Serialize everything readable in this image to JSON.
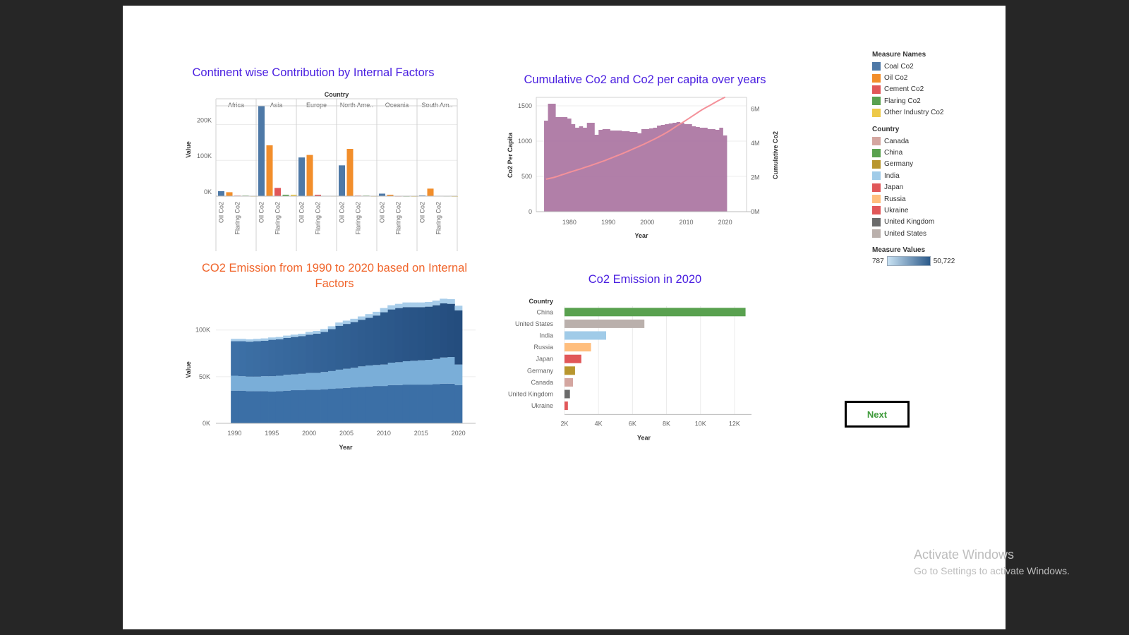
{
  "colors": {
    "coal": "#4e79a7",
    "oil": "#f28e2b",
    "cement": "#e15759",
    "flaring": "#59a14f",
    "other": "#edc948",
    "title_blue": "#4a1fe0",
    "title_orange": "#f0642a",
    "area_purple": "#ad78a3",
    "line_pink": "#f4919a"
  },
  "charts": {
    "continent": {
      "title": "Continent wise Contribution by Internal Factors",
      "header_label": "Country",
      "continents": [
        "Africa",
        "Asia",
        "Europe",
        "North Ame..",
        "Oceania",
        "South Am.."
      ],
      "x_tick_labels": [
        "Oil Co2",
        "Flaring Co2"
      ],
      "ylabel": "Value",
      "y_ticks": [
        "0K",
        "100K",
        "200K"
      ]
    },
    "cumulative": {
      "title": "Cumulative Co2 and Co2 per capita over years",
      "ylabel_left": "Co2 Per Capita",
      "ylabel_right": "Cumulative Co2",
      "xlabel": "Year",
      "y_ticks_left": [
        "0",
        "500",
        "1000",
        "1500"
      ],
      "y_ticks_right": [
        "0M",
        "2M",
        "4M",
        "6M"
      ],
      "x_ticks": [
        "1980",
        "1990",
        "2000",
        "2010",
        "2020"
      ]
    },
    "emission_area": {
      "title": "CO2 Emission from 1990 to 2020 based on Internal Factors",
      "ylabel": "Value",
      "xlabel": "Year",
      "y_ticks": [
        "0K",
        "50K",
        "100K"
      ],
      "x_ticks": [
        "1990",
        "1995",
        "2000",
        "2005",
        "2010",
        "2015",
        "2020"
      ]
    },
    "emission_2020": {
      "title": "Co2 Emission in 2020",
      "header_label": "Country",
      "xlabel": "Year",
      "x_ticks": [
        "2K",
        "4K",
        "6K",
        "8K",
        "10K",
        "12K"
      ]
    }
  },
  "legend": {
    "measure_names_title": "Measure Names",
    "measure_names": [
      {
        "label": "Coal Co2",
        "color": "#4e79a7"
      },
      {
        "label": "Oil Co2",
        "color": "#f28e2b"
      },
      {
        "label": "Cement Co2",
        "color": "#e15759"
      },
      {
        "label": "Flaring Co2",
        "color": "#59a14f"
      },
      {
        "label": "Other Industry Co2",
        "color": "#edc948"
      }
    ],
    "country_title": "Country",
    "countries": [
      {
        "label": "Canada",
        "color": "#d4a6a0"
      },
      {
        "label": "China",
        "color": "#59a14f"
      },
      {
        "label": "Germany",
        "color": "#b8962e"
      },
      {
        "label": "India",
        "color": "#a0cbe8"
      },
      {
        "label": "Japan",
        "color": "#e15759"
      },
      {
        "label": "Russia",
        "color": "#ffbe7d"
      },
      {
        "label": "Ukraine",
        "color": "#e15759"
      },
      {
        "label": "United Kingdom",
        "color": "#6b6b6b"
      },
      {
        "label": "United States",
        "color": "#bab0ac"
      }
    ],
    "measure_values_title": "Measure Values",
    "measure_values_min": "787",
    "measure_values_max": "50,722"
  },
  "next_button_label": "Next",
  "watermark": {
    "line1": "Activate Windows",
    "line2": "Go to Settings to activate Windows."
  },
  "chart_data": [
    {
      "type": "bar",
      "title": "Continent wise Contribution by Internal Factors",
      "ylabel": "Value",
      "ylim": [
        0,
        260000
      ],
      "categories": [
        "Africa",
        "Asia",
        "Europe",
        "North Ame..",
        "Oceania",
        "South Am.."
      ],
      "series": [
        {
          "name": "Coal Co2",
          "values": [
            14000,
            252000,
            108000,
            86000,
            7000,
            2000
          ]
        },
        {
          "name": "Oil Co2",
          "values": [
            11000,
            142000,
            115000,
            132000,
            4000,
            21000
          ]
        },
        {
          "name": "Cement Co2",
          "values": [
            1500,
            23000,
            4000,
            1500,
            400,
            1000
          ]
        },
        {
          "name": "Flaring Co2",
          "values": [
            1500,
            4000,
            800,
            1500,
            300,
            500
          ]
        },
        {
          "name": "Other Industry Co2",
          "values": [
            300,
            4000,
            500,
            300,
            100,
            100
          ]
        }
      ]
    },
    {
      "type": "area",
      "title": "Cumulative Co2 and Co2 per capita over years",
      "x": [
        1974,
        1975,
        1976,
        1977,
        1978,
        1979,
        1980,
        1981,
        1982,
        1983,
        1984,
        1985,
        1986,
        1987,
        1988,
        1989,
        1990,
        1991,
        1992,
        1993,
        1994,
        1995,
        1996,
        1997,
        1998,
        1999,
        2000,
        2001,
        2002,
        2003,
        2004,
        2005,
        2006,
        2007,
        2008,
        2009,
        2010,
        2011,
        2012,
        2013,
        2014,
        2015,
        2016,
        2017,
        2018,
        2019,
        2020
      ],
      "series": [
        {
          "name": "Co2 Per Capita",
          "values": [
            1290,
            1530,
            1530,
            1340,
            1340,
            1340,
            1320,
            1240,
            1190,
            1210,
            1190,
            1260,
            1260,
            1090,
            1160,
            1170,
            1170,
            1150,
            1150,
            1150,
            1140,
            1140,
            1130,
            1130,
            1110,
            1170,
            1170,
            1180,
            1190,
            1220,
            1230,
            1240,
            1250,
            1260,
            1270,
            1260,
            1240,
            1240,
            1210,
            1200,
            1190,
            1190,
            1170,
            1170,
            1160,
            1190,
            1080
          ]
        },
        {
          "name": "Cumulative Co2",
          "values": [
            1.9,
            1.95,
            2.0,
            2.07,
            2.15,
            2.22,
            2.3,
            2.37,
            2.44,
            2.51,
            2.59,
            2.66,
            2.74,
            2.82,
            2.9,
            2.98,
            3.07,
            3.16,
            3.25,
            3.34,
            3.43,
            3.53,
            3.63,
            3.73,
            3.83,
            3.93,
            4.04,
            4.15,
            4.26,
            4.38,
            4.5,
            4.63,
            4.77,
            4.92,
            5.07,
            5.2,
            5.35,
            5.5,
            5.65,
            5.8,
            5.95,
            6.08,
            6.2,
            6.33,
            6.46,
            6.58,
            6.7
          ]
        }
      ],
      "ylim_left": [
        0,
        1600
      ],
      "ylim_right_millions": [
        0,
        6.6
      ],
      "xlabel": "Year"
    },
    {
      "type": "area",
      "title": "CO2 Emission from 1990 to 2020 based on Internal Factors",
      "x": [
        1990,
        1991,
        1992,
        1993,
        1994,
        1995,
        1996,
        1997,
        1998,
        1999,
        2000,
        2001,
        2002,
        2003,
        2004,
        2005,
        2006,
        2007,
        2008,
        2009,
        2010,
        2011,
        2012,
        2013,
        2014,
        2015,
        2016,
        2017,
        2018,
        2019,
        2020
      ],
      "series": [
        {
          "name": "Coal Co2",
          "values": [
            35000,
            35000,
            34500,
            34500,
            34500,
            34000,
            34500,
            35000,
            35500,
            35500,
            36000,
            36000,
            36500,
            37000,
            37500,
            38000,
            38500,
            39000,
            39500,
            40000,
            40000,
            41000,
            41000,
            41500,
            41500,
            41500,
            41500,
            42000,
            42500,
            42500,
            41000
          ]
        },
        {
          "name": "Oil Co2",
          "values": [
            16000,
            15500,
            15500,
            15500,
            16000,
            16500,
            16500,
            17000,
            17000,
            17500,
            18000,
            18000,
            18500,
            19000,
            20000,
            20500,
            21000,
            22000,
            22500,
            22500,
            23000,
            24000,
            24500,
            25000,
            25500,
            26000,
            26500,
            27000,
            28000,
            28500,
            22000
          ]
        },
        {
          "name": "Cement Co2",
          "values": [
            37000,
            37500,
            37500,
            38000,
            38000,
            39000,
            39000,
            39500,
            40000,
            40500,
            41000,
            42000,
            43000,
            45000,
            47000,
            48000,
            49000,
            50000,
            51000,
            53000,
            56000,
            57000,
            58000,
            58000,
            57500,
            57000,
            57000,
            57500,
            58000,
            57000,
            58000
          ]
        },
        {
          "name": "Flaring Co2",
          "values": [
            2500,
            2500,
            2500,
            2500,
            2500,
            2500,
            2500,
            2500,
            2500,
            2500,
            3000,
            3000,
            3000,
            3000,
            3500,
            3500,
            3500,
            3500,
            4000,
            4000,
            4500,
            4500,
            4500,
            5000,
            5000,
            5000,
            5000,
            5000,
            5000,
            5000,
            5000
          ]
        }
      ],
      "ylabel": "Value",
      "xlabel": "Year",
      "ylim": [
        0,
        130000
      ]
    },
    {
      "type": "bar",
      "title": "Co2 Emission in 2020",
      "categories": [
        "China",
        "United States",
        "India",
        "Russia",
        "Japan",
        "Germany",
        "Canada",
        "United Kingdom",
        "Ukraine"
      ],
      "values": [
        12650,
        6700,
        4450,
        3560,
        2990,
        2620,
        2500,
        2320,
        2200
      ],
      "xlabel": "Year",
      "xlim": [
        2000,
        13000
      ]
    }
  ]
}
